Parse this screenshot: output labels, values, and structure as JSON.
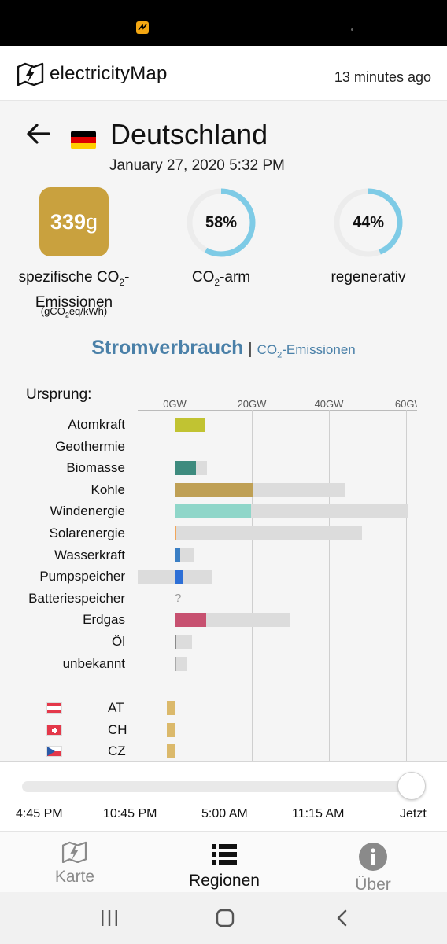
{
  "header": {
    "app_name": "electricityMap",
    "updated": "13 minutes ago"
  },
  "zone": {
    "country": "Deutschland",
    "datetime": "January 27, 2020 5:32 PM"
  },
  "metrics": {
    "co2_value": "339",
    "co2_unit": "g",
    "co2_color": "#c9a13e",
    "co2_label_pre": "spezifische CO",
    "co2_label_sub": "2",
    "co2_label_post": "-",
    "co2_label_line2": "Emissionen",
    "co2_unit_pre": "(gCO",
    "co2_unit_sub": "2",
    "co2_unit_post": "eq/kWh)",
    "low_carbon_pct": "58%",
    "low_carbon_fraction": 0.58,
    "low_carbon_label_pre": "CO",
    "low_carbon_label_sub": "2",
    "low_carbon_label_post": "-arm",
    "renewable_pct": "44%",
    "renewable_fraction": 0.44,
    "renewable_label": "regenerativ",
    "gauge_color": "#7ecbe6"
  },
  "mode_tabs": {
    "active": "Stromverbrauch",
    "separator": "|",
    "inactive_pre": "CO",
    "inactive_sub": "2",
    "inactive_post": "-Emissionen"
  },
  "chart_data": {
    "type": "bar",
    "title": "Ursprung:",
    "x_unit": "GW",
    "x_ticks": [
      "0GW",
      "20GW",
      "40GW",
      "60G\\"
    ],
    "categories": [
      "Atomkraft",
      "Geothermie",
      "Biomasse",
      "Kohle",
      "Windenergie",
      "Solarenergie",
      "Wasserkraft",
      "Pumpspeicher",
      "Batteriespeicher",
      "Erdgas",
      "Öl",
      "unbekannt"
    ],
    "series": [
      {
        "values": [
          8.0,
          0,
          5.6,
          20.2,
          19.8,
          0.3,
          1.4,
          2.2,
          null,
          8.2,
          0.3,
          0.4
        ]
      },
      {
        "values": [
          8.0,
          0,
          8.3,
          44.0,
          60.4,
          48.6,
          4.8,
          9.6,
          null,
          29.9,
          4.4,
          3.2
        ]
      }
    ],
    "negative_capacity": [
      0,
      0,
      0,
      0,
      0,
      0,
      0,
      -9.6,
      0,
      0,
      0,
      0
    ],
    "colors": [
      "#c1c332",
      null,
      "#3e8b7e",
      "#bfa055",
      "#8fd6c9",
      "#f2a65a",
      "#3b7fc4",
      "#2d6fd6",
      null,
      "#c75170",
      "#8a8a8a",
      "#aaaaaa"
    ],
    "capacity_color": "#dcdcdc",
    "unknown_marker": "?",
    "exchanges": [
      {
        "label": "AT",
        "value": -2
      },
      {
        "label": "CH",
        "value": -2
      },
      {
        "label": "CZ",
        "value": -2
      }
    ]
  },
  "timeline": {
    "ticks": [
      "4:45 PM",
      "10:45 PM",
      "5:00 AM",
      "11:15 AM",
      "Jetzt"
    ],
    "position": 1.0
  },
  "nav": {
    "map": "Karte",
    "regions": "Regionen",
    "about": "Über"
  }
}
